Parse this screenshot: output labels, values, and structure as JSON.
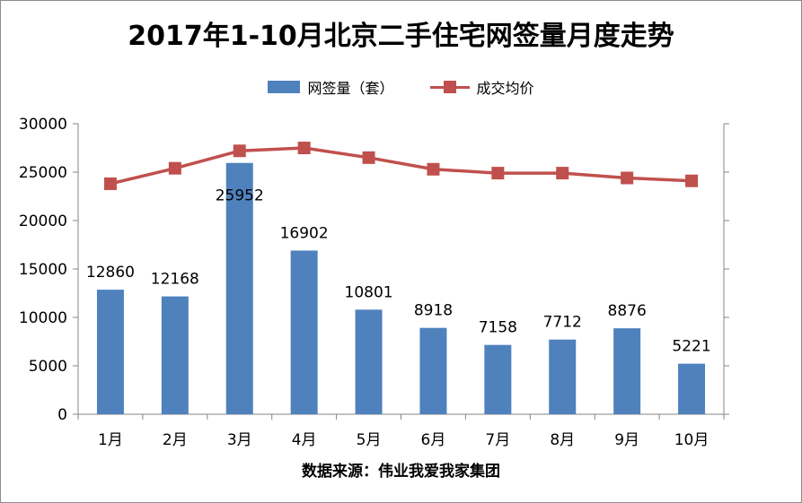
{
  "chart_data": {
    "type": "bar",
    "title": "2017年1-10月北京二手住宅网签量月度走势",
    "categories": [
      "1月",
      "2月",
      "3月",
      "4月",
      "5月",
      "6月",
      "7月",
      "8月",
      "9月",
      "10月"
    ],
    "series": [
      {
        "name": "网签量（套）",
        "type": "bar",
        "color": "#4f81bd",
        "values": [
          12860,
          12168,
          25952,
          16902,
          10801,
          8918,
          7158,
          7712,
          8876,
          5221
        ]
      },
      {
        "name": "成交均价",
        "type": "line",
        "color": "#c0504d",
        "values": [
          23800,
          25400,
          27200,
          27500,
          26500,
          25300,
          24900,
          24900,
          24400,
          24100
        ]
      }
    ],
    "ylim": [
      0,
      30000
    ],
    "yticks": [
      0,
      5000,
      10000,
      15000,
      20000,
      25000,
      30000
    ],
    "ytick_labels": [
      "0",
      "5000",
      "10000",
      "15000",
      "20000",
      "25000",
      "30000"
    ],
    "grid": false,
    "legend": "top-center",
    "source": "数据来源：伟业我爱我家集团"
  }
}
